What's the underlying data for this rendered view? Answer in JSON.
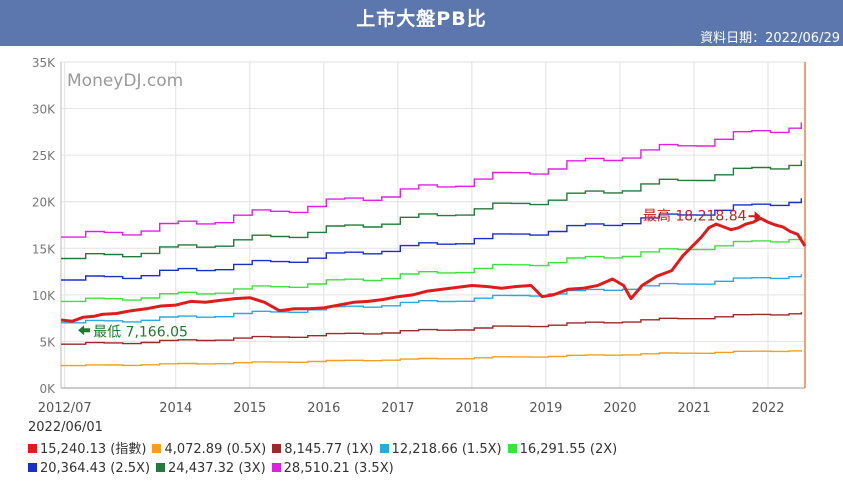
{
  "header": {
    "title": "上市大盤PB比",
    "date_label": "資料日期：2022/06/29"
  },
  "watermark": "MoneyDJ.com",
  "current_date": "2022/06/01",
  "annotations": {
    "high": "最高 18,218.84",
    "low": "最低 7,166.05"
  },
  "legend": [
    {
      "label": "15,240.13 (指數)",
      "color": "#e01b1b"
    },
    {
      "label": "4,072.89 (0.5X)",
      "color": "#f0a020"
    },
    {
      "label": "8,145.77 (1X)",
      "color": "#9a2a2a"
    },
    {
      "label": "12,218.66 (1.5X)",
      "color": "#2aa8e0"
    },
    {
      "label": "16,291.55 (2X)",
      "color": "#3ce23c"
    },
    {
      "label": "20,364.43 (2.5X)",
      "color": "#1a2fc8"
    },
    {
      "label": "24,437.32 (3X)",
      "color": "#237a3a"
    },
    {
      "label": "28,510.21 (3.5X)",
      "color": "#e020e0"
    }
  ],
  "chart_data": {
    "type": "line",
    "title": "上市大盤PB比",
    "xlim": [
      2012.45,
      2022.5
    ],
    "ylim": [
      0,
      35000
    ],
    "yticks": [
      0,
      5000,
      10000,
      15000,
      20000,
      25000,
      30000,
      35000
    ],
    "ytick_labels": [
      "0K",
      "5K",
      "10K",
      "15K",
      "20K",
      "25K",
      "30K",
      "35K"
    ],
    "xticks": [
      2012.5,
      2014,
      2015,
      2016,
      2017,
      2018,
      2019,
      2020,
      2021,
      2022
    ],
    "xtick_labels": [
      "2012/07",
      "2014",
      "2015",
      "2016",
      "2017",
      "2018",
      "2019",
      "2020",
      "2021",
      "2022"
    ],
    "index_series": {
      "name": "指數",
      "color": "#e01b1b",
      "x": [
        2012.45,
        2012.6,
        2012.75,
        2012.9,
        2013.0,
        2013.2,
        2013.4,
        2013.6,
        2013.8,
        2014.0,
        2014.2,
        2014.4,
        2014.6,
        2014.8,
        2015.0,
        2015.2,
        2015.4,
        2015.6,
        2015.8,
        2016.0,
        2016.2,
        2016.4,
        2016.6,
        2016.8,
        2017.0,
        2017.2,
        2017.4,
        2017.6,
        2017.8,
        2018.0,
        2018.2,
        2018.4,
        2018.6,
        2018.8,
        2018.95,
        2019.1,
        2019.3,
        2019.5,
        2019.7,
        2019.9,
        2020.05,
        2020.15,
        2020.3,
        2020.5,
        2020.7,
        2020.85,
        2021.0,
        2021.1,
        2021.2,
        2021.3,
        2021.4,
        2021.5,
        2021.6,
        2021.7,
        2021.8,
        2021.9,
        2022.0,
        2022.1,
        2022.2,
        2022.3,
        2022.4,
        2022.5
      ],
      "values": [
        7300,
        7166,
        7600,
        7700,
        7900,
        8000,
        8300,
        8500,
        8800,
        8900,
        9300,
        9200,
        9400,
        9600,
        9700,
        9200,
        8300,
        8500,
        8500,
        8600,
        8900,
        9200,
        9300,
        9500,
        9800,
        10000,
        10400,
        10600,
        10800,
        11000,
        10900,
        10700,
        10900,
        11000,
        9800,
        10000,
        10600,
        10700,
        11000,
        11700,
        11000,
        9600,
        11000,
        12000,
        12600,
        14200,
        15400,
        16200,
        17200,
        17600,
        17300,
        17000,
        17200,
        17600,
        17800,
        18218,
        17800,
        17500,
        17300,
        16800,
        16500,
        15240
      ]
    },
    "band_series": [
      {
        "name": "0.5X",
        "color": "#f0a020",
        "start": 2400,
        "end": 4072.89
      },
      {
        "name": "1X",
        "color": "#9a2a2a",
        "start": 4700,
        "end": 8145.77
      },
      {
        "name": "1.5X",
        "color": "#2aa8e0",
        "start": 7000,
        "end": 12218.66
      },
      {
        "name": "2X",
        "color": "#3ce23c",
        "start": 9300,
        "end": 16291.55
      },
      {
        "name": "2.5X",
        "color": "#1a2fc8",
        "start": 11600,
        "end": 20364.43
      },
      {
        "name": "3X",
        "color": "#237a3a",
        "start": 13900,
        "end": 24437.32
      },
      {
        "name": "3.5X",
        "color": "#e020e0",
        "start": 16200,
        "end": 28510.21
      }
    ]
  }
}
